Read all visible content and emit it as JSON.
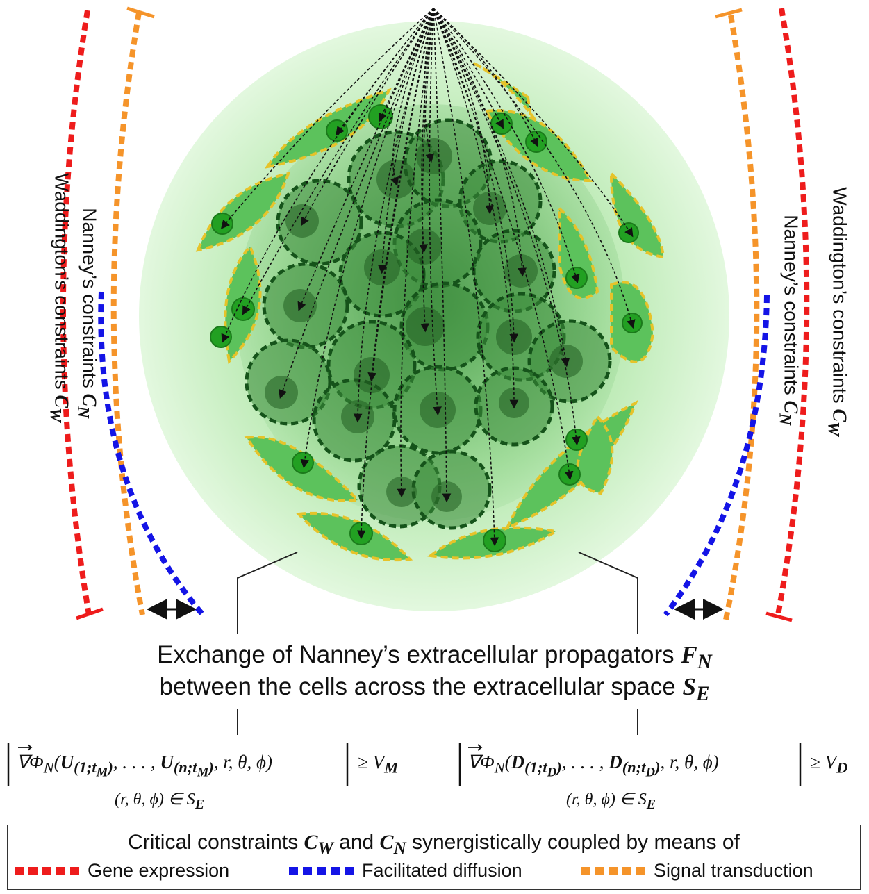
{
  "labels": {
    "left_outer": "Waddington’s constraints",
    "left_outer_sym": "C",
    "left_outer_sub": "W",
    "left_inner": "Nanney’s constraints",
    "left_inner_sym": "C",
    "left_inner_sub": "N",
    "right_outer": "Waddington’s constraints",
    "right_outer_sym": "C",
    "right_outer_sub": "W",
    "right_inner": "Nanney’s constraints",
    "right_inner_sym": "C",
    "right_inner_sub": "N"
  },
  "caption": {
    "line1": "Exchange of Nanney’s extracellular propagators",
    "line1_sym": "F",
    "line1_sub": "N",
    "line2": "between the cells across the extracellular space",
    "line2_sym": "S",
    "line2_sub": "E"
  },
  "equations": {
    "left_main": "Φ",
    "left_rhs": "≥ V",
    "left_rhs_sub": "M",
    "left_domain": "(r, θ, ϕ) ∈ S",
    "left_domain_sub": "E",
    "right_rhs": "≥ V",
    "right_rhs_sub": "D",
    "right_domain": "(r, θ, ϕ) ∈ S",
    "right_domain_sub": "E"
  },
  "legend": {
    "title_pre": "Critical constraints",
    "title_c1": "C",
    "title_c1_sub": "W",
    "title_mid": "and",
    "title_c2": "C",
    "title_c2_sub": "N",
    "title_post": "synergistically coupled by means of",
    "items": [
      {
        "label": "Gene expression",
        "color": "#ee1c1c"
      },
      {
        "label": "Facilitated diffusion",
        "color": "#1414e6"
      },
      {
        "label": "Signal transduction",
        "color": "#f5942a"
      }
    ]
  },
  "colors": {
    "gene_expression": "#ee1c1c",
    "facilitated_diffusion": "#1414e6",
    "signal_transduction": "#f5942a",
    "halo": "#c9f0c4",
    "cell_fill": "#3fae3f",
    "cell_border_dark": "#1d5a1d",
    "cell_border_yellow": "#e6c32a"
  }
}
